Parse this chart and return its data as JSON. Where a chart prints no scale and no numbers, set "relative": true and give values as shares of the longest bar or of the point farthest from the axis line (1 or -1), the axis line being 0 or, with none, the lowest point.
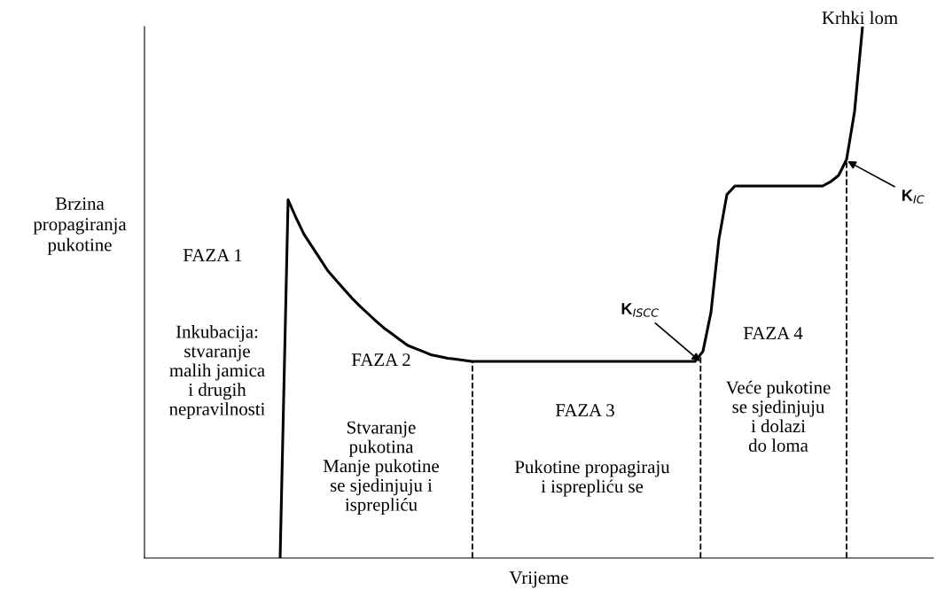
{
  "chart_data": {
    "type": "line",
    "relative": true,
    "color": "#000000",
    "line_style": "solid",
    "xlabel": "Vrijeme",
    "ylabel": "Brzina\npropagiranja\npukotine",
    "categories": [
      null,
      null,
      null,
      null,
      null,
      null,
      null,
      null,
      null,
      null,
      null,
      null,
      null,
      null,
      null,
      null,
      null,
      null,
      null,
      null,
      null,
      null,
      null,
      null,
      null,
      null,
      null,
      null,
      null,
      null,
      null,
      null,
      null,
      null,
      null,
      null,
      null,
      null,
      null,
      null,
      null,
      null,
      null,
      null,
      null,
      null,
      null,
      null,
      null,
      null,
      null,
      null,
      null,
      null,
      null,
      null,
      null,
      null,
      null,
      null,
      null,
      null,
      null,
      null,
      null,
      null,
      null,
      null,
      null,
      null,
      null,
      null,
      null,
      null,
      null,
      null,
      null,
      null,
      null,
      null,
      null,
      null,
      null,
      null,
      null,
      null,
      null,
      null,
      null,
      null,
      null,
      null,
      null,
      null,
      null,
      null,
      null,
      null
    ],
    "values": [
      null,
      null,
      null,
      null,
      null,
      null,
      null,
      null,
      null,
      null,
      null,
      null,
      null,
      null,
      null,
      null,
      0,
      0.674,
      0.64,
      0.609,
      0.586,
      0.563,
      0.54,
      0.523,
      0.506,
      0.489,
      0.474,
      0.46,
      0.446,
      0.433,
      0.422,
      0.411,
      0.4,
      0.394,
      0.388,
      0.382,
      0.379,
      0.376,
      0.374,
      0.372,
      0.37,
      0.37,
      0.37,
      0.37,
      0.37,
      0.37,
      0.37,
      0.37,
      0.37,
      0.37,
      0.37,
      0.37,
      0.37,
      0.37,
      0.37,
      0.37,
      0.37,
      0.37,
      0.37,
      0.37,
      0.37,
      0.37,
      0.37,
      0.37,
      0.37,
      0.37,
      0.37,
      0.37,
      0.37,
      0.389,
      0.462,
      0.6,
      0.684,
      0.7,
      0.7,
      0.7,
      0.7,
      0.7,
      0.7,
      0.7,
      0.7,
      0.7,
      0.7,
      0.7,
      0.7,
      0.708,
      0.72,
      0.75,
      0.84,
      1.0,
      null,
      null,
      null,
      null,
      null,
      null,
      null,
      null
    ],
    "legend": false,
    "annotations": [
      "Krhki lom",
      "K$_{ISCC}$",
      "K$_{IC}$",
      "FAZA 1",
      "Inkubacija:\nstvaranje\nmalih jamica\ni drugih\nnepravilnosti",
      "FAZA 2",
      "Stvaranje\npukotina\nManje pukotine\nse sjedinjuju i\nisprepliću",
      "FAZA 3",
      "Pukotine propagiraju\ni isprepliću se",
      "FAZA 4",
      "Veće pukotine\nse sjedinjuju\ni dolazi\ndo loma"
    ]
  }
}
